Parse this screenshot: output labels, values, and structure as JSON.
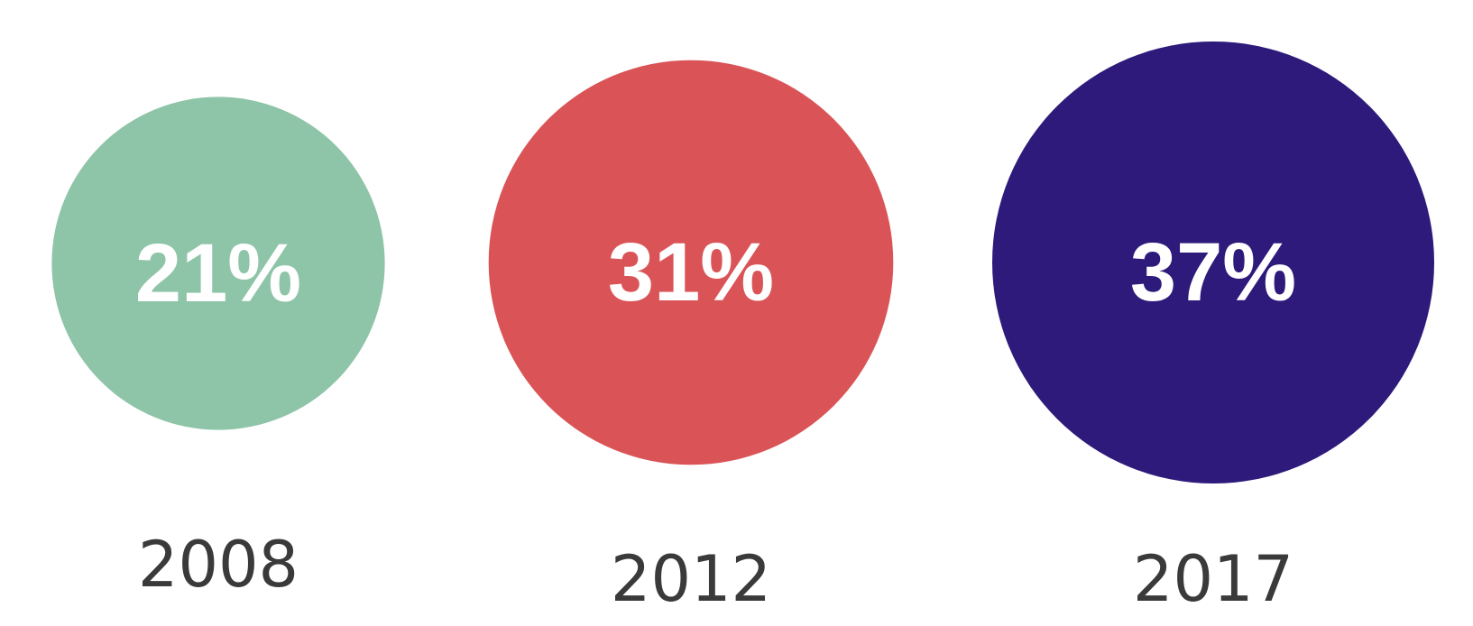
{
  "chart_data": {
    "type": "bubble",
    "title": "",
    "xlabel": "",
    "ylabel": "",
    "categories": [
      "2008",
      "2012",
      "2017"
    ],
    "values": [
      21,
      31,
      37
    ],
    "value_labels": [
      "21%",
      "31%",
      "37%"
    ],
    "colors": [
      "#8ec4a7",
      "#da5457",
      "#2d1a7b"
    ],
    "legend": "none",
    "grid": false
  }
}
